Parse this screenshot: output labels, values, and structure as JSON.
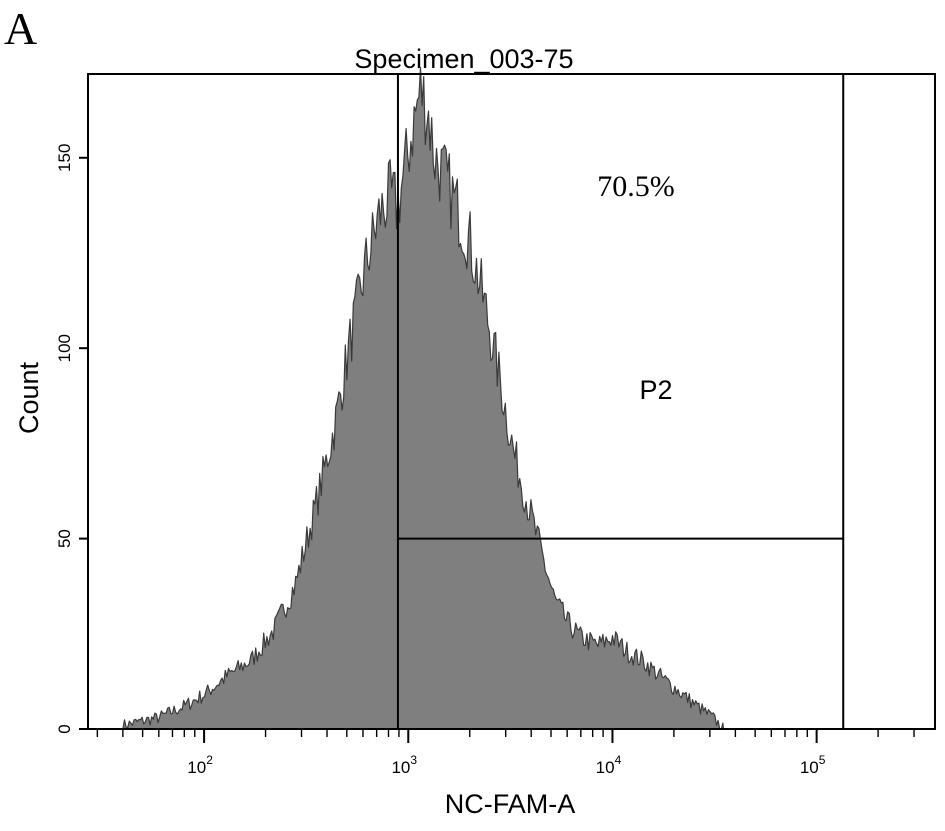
{
  "figure": {
    "panel_label": "A"
  },
  "chart_data": {
    "type": "area",
    "title": "Specimen_003-75",
    "xlabel": "NC-FAM-A",
    "ylabel": "Count",
    "x_scale": "log",
    "xlim": [
      27,
      380000
    ],
    "ylim": [
      0,
      172
    ],
    "y_ticks": [
      0,
      50,
      100,
      150
    ],
    "x_ticks": [
      {
        "value": 100,
        "base": "10",
        "exp": "2"
      },
      {
        "value": 1000,
        "base": "10",
        "exp": "3"
      },
      {
        "value": 10000,
        "base": "10",
        "exp": "4"
      },
      {
        "value": 100000,
        "base": "10",
        "exp": "5"
      }
    ],
    "histogram": {
      "x": [
        40,
        60,
        80,
        100,
        130,
        170,
        220,
        280,
        350,
        430,
        520,
        620,
        720,
        820,
        880,
        950,
        1050,
        1150,
        1250,
        1350,
        1500,
        1700,
        2000,
        2400,
        2800,
        3300,
        3800,
        4500,
        5200,
        6000,
        7000,
        8500,
        10000,
        12000,
        14000,
        17000,
        21000,
        26000,
        31000,
        35000
      ],
      "y": [
        1,
        3,
        6,
        9,
        14,
        18,
        26,
        38,
        58,
        78,
        102,
        122,
        135,
        140,
        137,
        145,
        158,
        168,
        162,
        150,
        145,
        138,
        128,
        110,
        92,
        72,
        60,
        46,
        34,
        28,
        24,
        22,
        24,
        20,
        18,
        14,
        10,
        6,
        3,
        0
      ]
    },
    "fill_color": "#7f7f7f",
    "gate": {
      "name": "P2",
      "percent_label": "70.5%",
      "x_min": 890,
      "x_max": 135000,
      "y_level": 50
    }
  }
}
